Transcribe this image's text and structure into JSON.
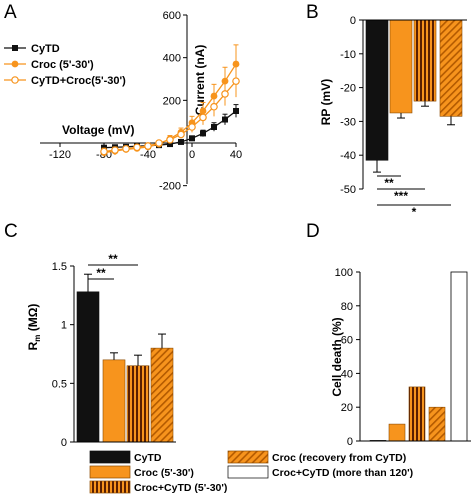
{
  "panels": {
    "a": {
      "label": "A"
    },
    "b": {
      "label": "B"
    },
    "c": {
      "label": "C"
    },
    "d": {
      "label": "D"
    }
  },
  "colors": {
    "cytd": "#111111",
    "croc": "#f7941d",
    "croc_light": "#f7b06a",
    "stripe_dark": "#5a1f00"
  },
  "chart_data": [
    {
      "panel": "A",
      "type": "line",
      "xlabel": "Voltage (mV)",
      "ylabel": "Current (nA)",
      "xlim": [
        -120,
        40
      ],
      "ylim": [
        -200,
        600
      ],
      "x_ticks": [
        "-120",
        "-80",
        "-40",
        "0",
        "40"
      ],
      "y_ticks": [
        "600",
        "400",
        "200",
        "0",
        "-200"
      ],
      "series": [
        {
          "name": "CyTD",
          "marker": "filled-square",
          "color": "#111111",
          "x": [
            -80,
            -70,
            -60,
            -50,
            -40,
            -30,
            -20,
            -10,
            0,
            10,
            20,
            30,
            40
          ],
          "y": [
            -22,
            -20,
            -18,
            -15,
            -13,
            -10,
            -5,
            5,
            22,
            45,
            75,
            110,
            150
          ],
          "err": [
            8,
            8,
            7,
            7,
            6,
            6,
            6,
            8,
            10,
            15,
            20,
            25,
            30
          ]
        },
        {
          "name": "Croc (5'-30')",
          "marker": "filled-circle",
          "color": "#f7941d",
          "x": [
            -80,
            -70,
            -60,
            -50,
            -40,
            -30,
            -20,
            -10,
            0,
            10,
            20,
            30,
            40
          ],
          "y": [
            -45,
            -38,
            -30,
            -25,
            -18,
            -5,
            20,
            50,
            95,
            150,
            220,
            290,
            370
          ],
          "err": [
            20,
            18,
            16,
            14,
            12,
            12,
            15,
            20,
            30,
            40,
            55,
            65,
            90
          ]
        },
        {
          "name": "CyTD+Croc(5'-30')",
          "marker": "open-circle",
          "color": "#f7941d",
          "x": [
            -80,
            -70,
            -60,
            -50,
            -40,
            -30,
            -20,
            -10,
            0,
            10,
            20,
            30,
            40
          ],
          "y": [
            -40,
            -33,
            -27,
            -20,
            -14,
            0,
            15,
            40,
            75,
            120,
            170,
            230,
            290
          ],
          "err": [
            15,
            14,
            12,
            12,
            10,
            10,
            12,
            18,
            25,
            35,
            45,
            55,
            75
          ]
        }
      ]
    },
    {
      "panel": "B",
      "type": "bar",
      "ylabel": "RP (mV)",
      "ylim": [
        -50,
        0
      ],
      "y_ticks": [
        "0",
        "-10",
        "-20",
        "-30",
        "-40",
        "-50"
      ],
      "categories": [
        "CyTD",
        "Croc (5'-30')",
        "Croc+CyTD (5'-30')",
        "Croc (recovery from CyTD)"
      ],
      "values": [
        -41.5,
        -27.5,
        -24,
        -28.5
      ],
      "errors": [
        3.5,
        1.5,
        1.5,
        2.5
      ],
      "significance": [
        {
          "from": 0,
          "to": 1,
          "label": "**"
        },
        {
          "from": 0,
          "to": 2,
          "label": "***"
        },
        {
          "from": 0,
          "to": 3,
          "label": "*"
        }
      ]
    },
    {
      "panel": "C",
      "type": "bar",
      "ylabel_main": "R",
      "ylabel_sub": "m",
      "ylabel_rest": " (MΩ)",
      "ylim": [
        0,
        1.5
      ],
      "y_ticks": [
        "0",
        "0.5",
        "1",
        "1.5"
      ],
      "categories": [
        "CyTD",
        "Croc (5'-30')",
        "Croc+CyTD (5'-30')",
        "Croc (recovery from CyTD)"
      ],
      "values": [
        1.28,
        0.7,
        0.65,
        0.8
      ],
      "errors": [
        0.15,
        0.06,
        0.09,
        0.12
      ],
      "significance": [
        {
          "from": 0,
          "to": 1,
          "label": "**"
        },
        {
          "from": 0,
          "to": 2,
          "label": "**"
        }
      ]
    },
    {
      "panel": "D",
      "type": "bar",
      "ylabel": "Cell death (%)",
      "ylim": [
        0,
        100
      ],
      "y_ticks": [
        "0",
        "20",
        "40",
        "60",
        "80",
        "100"
      ],
      "categories": [
        "CyTD",
        "Croc (5'-30')",
        "Croc+CyTD (5'-30')",
        "Croc (recovery from CyTD)",
        "Croc+CyTD (more than 120')"
      ],
      "values": [
        0,
        10,
        32,
        20,
        100
      ]
    }
  ],
  "legend": {
    "items": [
      {
        "label": "CyTD",
        "style": "solid-black"
      },
      {
        "label": "Croc (5'-30')",
        "style": "solid-orange"
      },
      {
        "label": "Croc+CyTD (5'-30')",
        "style": "vertical-stripes"
      },
      {
        "label": "Croc (recovery from CyTD)",
        "style": "diagonal-hatch"
      },
      {
        "label": "Croc+CyTD (more than 120')",
        "style": "white"
      }
    ]
  }
}
